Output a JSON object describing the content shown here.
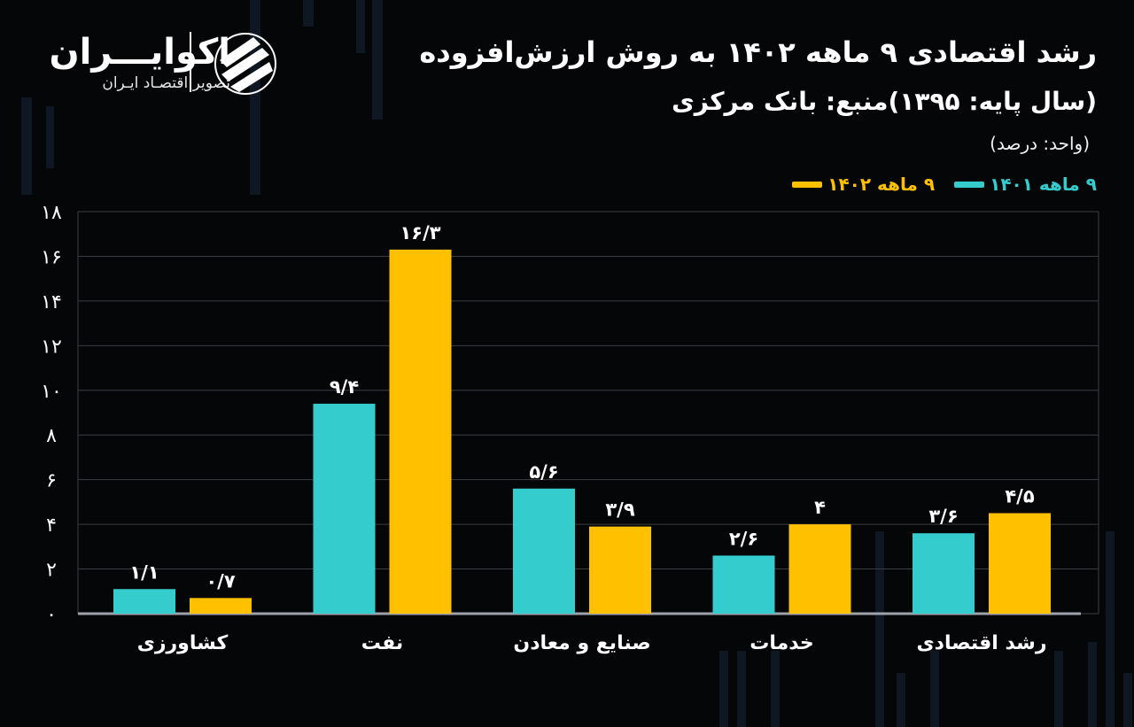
{
  "header": {
    "title": "رشد اقتصادی ۹ ماهه ۱۴۰۲ به روش ارزش‌افزوده",
    "subtitle": "(سال پایه: ۱۳۹۵)منبع: بانک مرکزی",
    "unit": "(واحد: درصد)"
  },
  "logo": {
    "name": "اکوایـــران",
    "tagline": "تصویر اقتصـاد ایـران",
    "icon": "ecoiran-logo-icon"
  },
  "legend": [
    {
      "label": "۹ ماهه ۱۴۰۱",
      "color": "#35cccd"
    },
    {
      "label": "۹ ماهه ۱۴۰۲",
      "color": "#ffc000"
    }
  ],
  "colors": {
    "background": "#050608",
    "series1401": "#35cccd",
    "series1402": "#ffc000",
    "grid": "#3a3d44"
  },
  "chart_data": {
    "type": "bar",
    "title": "رشد اقتصادی ۹ ماهه ۱۴۰۲ به روش ارزش‌افزوده",
    "xlabel": "",
    "ylabel": "",
    "ylim": [
      0,
      18
    ],
    "yticks": [
      0,
      2,
      4,
      6,
      8,
      10,
      12,
      14,
      16,
      18
    ],
    "ytick_labels": [
      "۰",
      "۲",
      "۴",
      "۶",
      "۸",
      "۱۰",
      "۱۲",
      "۱۴",
      "۱۶",
      "۱۸"
    ],
    "grid": true,
    "legend_position": "top-right",
    "categories": [
      "کشاورزی",
      "نفت",
      "صنایع و معادن",
      "خدمات",
      "رشد اقتصادی"
    ],
    "series": [
      {
        "name": "۹ ماهه ۱۴۰۱",
        "color": "#35cccd",
        "values": [
          1.1,
          9.4,
          5.6,
          2.6,
          3.6
        ],
        "labels": [
          "۱/۱",
          "۹/۴",
          "۵/۶",
          "۲/۶",
          "۳/۶"
        ]
      },
      {
        "name": "۹ ماهه ۱۴۰۲",
        "color": "#ffc000",
        "values": [
          0.7,
          16.3,
          3.9,
          4,
          4.5
        ],
        "labels": [
          "۰/۷",
          "۱۶/۳",
          "۳/۹",
          "۴",
          "۴/۵"
        ]
      }
    ]
  }
}
